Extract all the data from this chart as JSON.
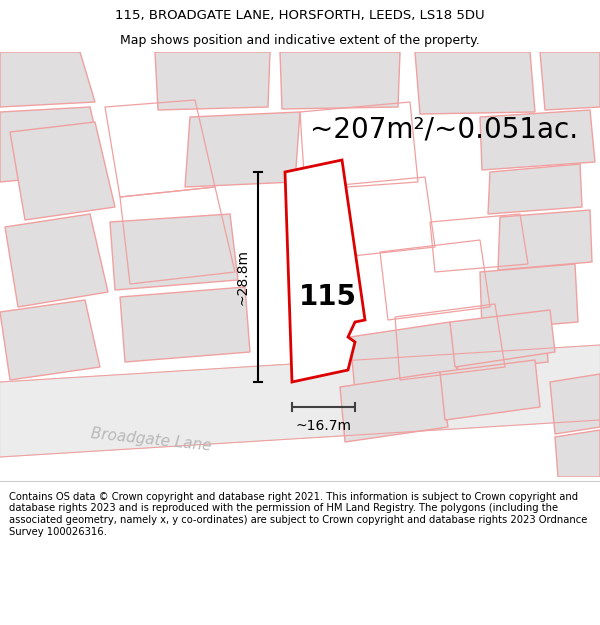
{
  "title_line1": "115, BROADGATE LANE, HORSFORTH, LEEDS, LS18 5DU",
  "title_line2": "Map shows position and indicative extent of the property.",
  "footer_text": "Contains OS data © Crown copyright and database right 2021. This information is subject to Crown copyright and database rights 2023 and is reproduced with the permission of HM Land Registry. The polygons (including the associated geometry, namely x, y co-ordinates) are subject to Crown copyright and database rights 2023 Ordnance Survey 100026316.",
  "area_label": "~207m²/~0.051ac.",
  "number_label": "115",
  "width_label": "~16.7m",
  "height_label": "~28.8m",
  "road_label": "Broadgate Lane",
  "map_bg": "#f5f3f3",
  "building_fill": "#e0dede",
  "building_edge_light": "#f0a0a0",
  "highlight_fill": "#ffffff",
  "highlight_edge": "#dd0000",
  "title_fontsize": 9.5,
  "footer_fontsize": 7.2,
  "area_fontsize": 20,
  "number_fontsize": 20,
  "measure_fontsize": 10,
  "road_fontsize": 11
}
